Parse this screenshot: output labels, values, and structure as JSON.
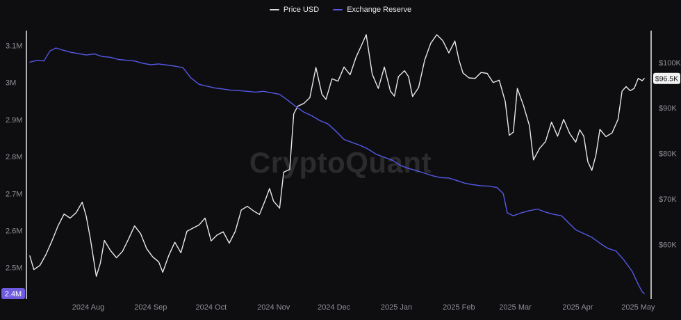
{
  "watermark": "CryptoQuant",
  "legend": [
    {
      "label": "Price USD",
      "color": "#d9d9d9"
    },
    {
      "label": "Exchange Reserve",
      "color": "#5558e6"
    }
  ],
  "chart_data": {
    "type": "line",
    "background": "#0e0e11",
    "grid": false,
    "legend_position": "top-center",
    "x_range": [
      "2024-07-02",
      "2025-05-05"
    ],
    "x_ticks": [
      {
        "date": "2024-08-01",
        "label": "2024 Aug"
      },
      {
        "date": "2024-09-01",
        "label": "2024 Sep"
      },
      {
        "date": "2024-10-01",
        "label": "2024 Oct"
      },
      {
        "date": "2024-11-01",
        "label": "2024 Nov"
      },
      {
        "date": "2024-12-01",
        "label": "2024 Dec"
      },
      {
        "date": "2025-01-01",
        "label": "2025 Jan"
      },
      {
        "date": "2025-02-01",
        "label": "2025 Feb"
      },
      {
        "date": "2025-03-01",
        "label": "2025 Mar"
      },
      {
        "date": "2025-04-01",
        "label": "2025 Apr"
      },
      {
        "date": "2025-05-01",
        "label": "2025 May"
      }
    ],
    "left_axis": {
      "name": "Exchange Reserve",
      "unit": "M BTC",
      "min": 2.415,
      "max": 3.14,
      "ticks": [
        {
          "v": 3.1,
          "label": "3.1M"
        },
        {
          "v": 3.0,
          "label": "3M"
        },
        {
          "v": 2.9,
          "label": "2.9M"
        },
        {
          "v": 2.8,
          "label": "2.8M"
        },
        {
          "v": 2.7,
          "label": "2.7M"
        },
        {
          "v": 2.6,
          "label": "2.6M"
        },
        {
          "v": 2.5,
          "label": "2.5M"
        }
      ],
      "badge": {
        "v": 2.43,
        "label": "2.4M",
        "bg": "#6e5be0",
        "fg": "#ffffff"
      }
    },
    "right_axis": {
      "name": "Price USD",
      "unit": "K USD",
      "min": 48,
      "max": 107,
      "ticks": [
        {
          "v": 100,
          "label": "$100K"
        },
        {
          "v": 90,
          "label": "$90K"
        },
        {
          "v": 80,
          "label": "$80K"
        },
        {
          "v": 70,
          "label": "$70K"
        },
        {
          "v": 60,
          "label": "$60K"
        }
      ],
      "badge": {
        "v": 96.5,
        "label": "$96.5K",
        "bg": "#f2f2f2",
        "fg": "#111111"
      }
    },
    "series": [
      {
        "name": "Price USD",
        "axis": "right",
        "color": "#e8e8e8",
        "points": [
          [
            "2024-07-03",
            57.5
          ],
          [
            "2024-07-05",
            54.5
          ],
          [
            "2024-07-08",
            55.4
          ],
          [
            "2024-07-11",
            57.8
          ],
          [
            "2024-07-14",
            60.8
          ],
          [
            "2024-07-17",
            64.1
          ],
          [
            "2024-07-20",
            66.7
          ],
          [
            "2024-07-23",
            65.8
          ],
          [
            "2024-07-26",
            67.0
          ],
          [
            "2024-07-29",
            69.3
          ],
          [
            "2024-07-31",
            66.2
          ],
          [
            "2024-08-02",
            61.4
          ],
          [
            "2024-08-05",
            53.0
          ],
          [
            "2024-08-07",
            55.9
          ],
          [
            "2024-08-09",
            60.9
          ],
          [
            "2024-08-12",
            58.7
          ],
          [
            "2024-08-15",
            57.1
          ],
          [
            "2024-08-18",
            58.5
          ],
          [
            "2024-08-21",
            61.2
          ],
          [
            "2024-08-24",
            64.1
          ],
          [
            "2024-08-27",
            62.4
          ],
          [
            "2024-08-30",
            59.1
          ],
          [
            "2024-09-02",
            57.3
          ],
          [
            "2024-09-05",
            56.2
          ],
          [
            "2024-09-07",
            53.9
          ],
          [
            "2024-09-10",
            57.6
          ],
          [
            "2024-09-13",
            60.5
          ],
          [
            "2024-09-16",
            58.2
          ],
          [
            "2024-09-19",
            62.9
          ],
          [
            "2024-09-22",
            63.6
          ],
          [
            "2024-09-25",
            64.3
          ],
          [
            "2024-09-28",
            65.8
          ],
          [
            "2024-10-01",
            60.8
          ],
          [
            "2024-10-04",
            62.1
          ],
          [
            "2024-10-07",
            62.8
          ],
          [
            "2024-10-10",
            60.3
          ],
          [
            "2024-10-13",
            62.9
          ],
          [
            "2024-10-16",
            67.6
          ],
          [
            "2024-10-19",
            68.4
          ],
          [
            "2024-10-22",
            67.4
          ],
          [
            "2024-10-25",
            66.6
          ],
          [
            "2024-10-28",
            69.9
          ],
          [
            "2024-10-30",
            72.3
          ],
          [
            "2024-11-01",
            69.5
          ],
          [
            "2024-11-04",
            68.0
          ],
          [
            "2024-11-06",
            75.9
          ],
          [
            "2024-11-09",
            76.5
          ],
          [
            "2024-11-11",
            88.7
          ],
          [
            "2024-11-13",
            90.4
          ],
          [
            "2024-11-16",
            91.0
          ],
          [
            "2024-11-19",
            92.3
          ],
          [
            "2024-11-22",
            98.9
          ],
          [
            "2024-11-25",
            93.0
          ],
          [
            "2024-11-27",
            91.9
          ],
          [
            "2024-11-30",
            96.4
          ],
          [
            "2024-12-03",
            95.9
          ],
          [
            "2024-12-06",
            99.0
          ],
          [
            "2024-12-09",
            97.3
          ],
          [
            "2024-12-12",
            101.2
          ],
          [
            "2024-12-15",
            104.1
          ],
          [
            "2024-12-17",
            106.1
          ],
          [
            "2024-12-20",
            97.4
          ],
          [
            "2024-12-23",
            94.3
          ],
          [
            "2024-12-26",
            99.0
          ],
          [
            "2024-12-29",
            93.7
          ],
          [
            "2024-12-31",
            92.6
          ],
          [
            "2025-01-02",
            96.9
          ],
          [
            "2025-01-05",
            98.2
          ],
          [
            "2025-01-07",
            96.9
          ],
          [
            "2025-01-09",
            92.5
          ],
          [
            "2025-01-12",
            94.5
          ],
          [
            "2025-01-15",
            100.5
          ],
          [
            "2025-01-18",
            104.2
          ],
          [
            "2025-01-21",
            106.1
          ],
          [
            "2025-01-24",
            104.8
          ],
          [
            "2025-01-27",
            102.1
          ],
          [
            "2025-01-30",
            104.7
          ],
          [
            "2025-02-01",
            100.6
          ],
          [
            "2025-02-03",
            97.7
          ],
          [
            "2025-02-06",
            96.6
          ],
          [
            "2025-02-09",
            96.5
          ],
          [
            "2025-02-12",
            97.8
          ],
          [
            "2025-02-15",
            97.6
          ],
          [
            "2025-02-18",
            95.6
          ],
          [
            "2025-02-21",
            96.1
          ],
          [
            "2025-02-24",
            91.4
          ],
          [
            "2025-02-26",
            84.0
          ],
          [
            "2025-02-28",
            84.7
          ],
          [
            "2025-03-02",
            94.3
          ],
          [
            "2025-03-05",
            90.6
          ],
          [
            "2025-03-08",
            86.1
          ],
          [
            "2025-03-10",
            78.6
          ],
          [
            "2025-03-13",
            81.1
          ],
          [
            "2025-03-16",
            82.6
          ],
          [
            "2025-03-19",
            86.9
          ],
          [
            "2025-03-22",
            83.8
          ],
          [
            "2025-03-25",
            87.5
          ],
          [
            "2025-03-28",
            84.4
          ],
          [
            "2025-03-31",
            82.5
          ],
          [
            "2025-04-02",
            85.2
          ],
          [
            "2025-04-04",
            83.8
          ],
          [
            "2025-04-06",
            78.2
          ],
          [
            "2025-04-08",
            76.3
          ],
          [
            "2025-04-10",
            79.6
          ],
          [
            "2025-04-12",
            85.3
          ],
          [
            "2025-04-15",
            83.7
          ],
          [
            "2025-04-18",
            84.5
          ],
          [
            "2025-04-21",
            87.5
          ],
          [
            "2025-04-23",
            93.7
          ],
          [
            "2025-04-25",
            94.7
          ],
          [
            "2025-04-27",
            93.8
          ],
          [
            "2025-04-29",
            94.3
          ],
          [
            "2025-05-01",
            96.5
          ],
          [
            "2025-05-03",
            96.0
          ],
          [
            "2025-05-04",
            96.5
          ]
        ]
      },
      {
        "name": "Exchange Reserve",
        "axis": "left",
        "color": "#5558e6",
        "points": [
          [
            "2024-07-03",
            3.055
          ],
          [
            "2024-07-07",
            3.06
          ],
          [
            "2024-07-10",
            3.058
          ],
          [
            "2024-07-13",
            3.085
          ],
          [
            "2024-07-16",
            3.093
          ],
          [
            "2024-07-19",
            3.088
          ],
          [
            "2024-07-23",
            3.082
          ],
          [
            "2024-07-27",
            3.078
          ],
          [
            "2024-07-31",
            3.074
          ],
          [
            "2024-08-04",
            3.077
          ],
          [
            "2024-08-08",
            3.07
          ],
          [
            "2024-08-12",
            3.068
          ],
          [
            "2024-08-16",
            3.062
          ],
          [
            "2024-08-20",
            3.06
          ],
          [
            "2024-08-24",
            3.058
          ],
          [
            "2024-08-28",
            3.052
          ],
          [
            "2024-09-01",
            3.048
          ],
          [
            "2024-09-05",
            3.05
          ],
          [
            "2024-09-09",
            3.047
          ],
          [
            "2024-09-13",
            3.044
          ],
          [
            "2024-09-17",
            3.04
          ],
          [
            "2024-09-21",
            3.012
          ],
          [
            "2024-09-25",
            2.995
          ],
          [
            "2024-09-29",
            2.99
          ],
          [
            "2024-10-03",
            2.985
          ],
          [
            "2024-10-07",
            2.982
          ],
          [
            "2024-10-11",
            2.979
          ],
          [
            "2024-10-15",
            2.978
          ],
          [
            "2024-10-19",
            2.976
          ],
          [
            "2024-10-23",
            2.974
          ],
          [
            "2024-10-27",
            2.976
          ],
          [
            "2024-10-31",
            2.972
          ],
          [
            "2024-11-04",
            2.968
          ],
          [
            "2024-11-08",
            2.952
          ],
          [
            "2024-11-12",
            2.935
          ],
          [
            "2024-11-16",
            2.92
          ],
          [
            "2024-11-20",
            2.91
          ],
          [
            "2024-11-24",
            2.897
          ],
          [
            "2024-11-28",
            2.888
          ],
          [
            "2024-12-02",
            2.868
          ],
          [
            "2024-12-06",
            2.846
          ],
          [
            "2024-12-10",
            2.838
          ],
          [
            "2024-12-14",
            2.83
          ],
          [
            "2024-12-18",
            2.82
          ],
          [
            "2024-12-22",
            2.806
          ],
          [
            "2024-12-26",
            2.798
          ],
          [
            "2024-12-30",
            2.79
          ],
          [
            "2025-01-03",
            2.776
          ],
          [
            "2025-01-07",
            2.768
          ],
          [
            "2025-01-11",
            2.762
          ],
          [
            "2025-01-15",
            2.755
          ],
          [
            "2025-01-19",
            2.748
          ],
          [
            "2025-01-23",
            2.743
          ],
          [
            "2025-01-27",
            2.742
          ],
          [
            "2025-01-31",
            2.735
          ],
          [
            "2025-02-04",
            2.728
          ],
          [
            "2025-02-08",
            2.724
          ],
          [
            "2025-02-12",
            2.721
          ],
          [
            "2025-02-16",
            2.72
          ],
          [
            "2025-02-20",
            2.716
          ],
          [
            "2025-02-23",
            2.7
          ],
          [
            "2025-02-25",
            2.648
          ],
          [
            "2025-02-28",
            2.64
          ],
          [
            "2025-03-04",
            2.648
          ],
          [
            "2025-03-08",
            2.654
          ],
          [
            "2025-03-12",
            2.658
          ],
          [
            "2025-03-16",
            2.65
          ],
          [
            "2025-03-20",
            2.644
          ],
          [
            "2025-03-24",
            2.64
          ],
          [
            "2025-03-28",
            2.618
          ],
          [
            "2025-03-31",
            2.602
          ],
          [
            "2025-04-04",
            2.592
          ],
          [
            "2025-04-08",
            2.582
          ],
          [
            "2025-04-12",
            2.566
          ],
          [
            "2025-04-16",
            2.552
          ],
          [
            "2025-04-20",
            2.545
          ],
          [
            "2025-04-24",
            2.52
          ],
          [
            "2025-04-28",
            2.49
          ],
          [
            "2025-05-01",
            2.455
          ],
          [
            "2025-05-03",
            2.435
          ],
          [
            "2025-05-04",
            2.43
          ]
        ]
      }
    ]
  }
}
